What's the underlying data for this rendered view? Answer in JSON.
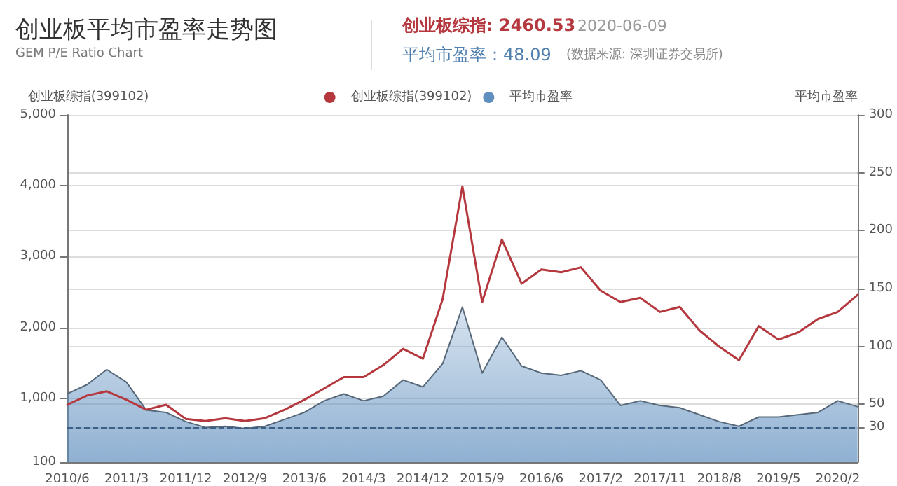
{
  "chart_data": {
    "type": "line",
    "title": "创业板平均市盈率走势图",
    "subtitle": "GEM P/E Ratio Chart",
    "annotations": [
      "创业板综指: 2460.53",
      "2020-06-09",
      "平均市盈率：48.09",
      "(数据来源: 深圳证券交易所)"
    ],
    "ylabel": "创业板综指(399102)",
    "y2label": "平均市盈率",
    "categories": [
      "2010/6",
      null,
      null,
      "2011/3",
      null,
      null,
      "2011/12",
      null,
      null,
      "2012/9",
      null,
      null,
      "2013/6",
      null,
      null,
      "2014/3",
      null,
      null,
      "2014/12",
      null,
      null,
      "2015/9",
      null,
      null,
      "2016/6",
      null,
      null,
      "2017/2",
      null,
      null,
      "2017/11",
      null,
      null,
      "2018/8",
      null,
      null,
      "2019/5",
      null,
      null,
      "2020/2",
      null
    ],
    "series": [
      {
        "name": "创业板综指(399102)",
        "color": "#b5383f",
        "values": [
          910,
          1040,
          1100,
          980,
          840,
          910,
          710,
          680,
          720,
          680,
          720,
          840,
          980,
          1140,
          1300,
          1300,
          1470,
          1700,
          1560,
          2400,
          3990,
          2360,
          3240,
          2620,
          2820,
          2780,
          2850,
          2520,
          2360,
          2420,
          2220,
          2290,
          1960,
          1730,
          1540,
          2020,
          1830,
          1930,
          2120,
          2220,
          2460
        ]
      },
      {
        "name": "平均市盈率",
        "type": "area",
        "axis": "y2",
        "color": "#5f8fbf",
        "values": [
          59,
          67,
          80,
          69,
          45,
          43,
          35,
          30,
          31,
          29,
          31,
          37,
          43,
          53,
          59,
          53,
          57,
          71,
          65,
          85,
          134,
          77,
          108,
          83,
          77,
          75,
          79,
          71,
          49,
          53,
          49,
          47,
          41,
          35,
          31,
          39,
          39,
          41,
          43,
          53,
          48
        ]
      }
    ],
    "ylim": [
      100,
      5000
    ],
    "yticks": [
      100,
      {
        "value": 1000,
        "label": "1,000"
      },
      {
        "value": 2000,
        "label": "2,000"
      },
      {
        "value": 3000,
        "label": "3,000"
      },
      {
        "value": 4000,
        "label": "4,000"
      },
      {
        "value": 5000,
        "label": "5,000"
      }
    ],
    "y2lim": [
      0,
      300
    ],
    "y2ticks": [
      30,
      50,
      100,
      150,
      200,
      250,
      300
    ],
    "ref_lines": [
      {
        "axis": "y2",
        "value": 30,
        "line_style": "dashed",
        "color": "#3d5f85"
      }
    ],
    "grid": "y",
    "legend": "top",
    "marker": "none",
    "line_style": "solid"
  }
}
